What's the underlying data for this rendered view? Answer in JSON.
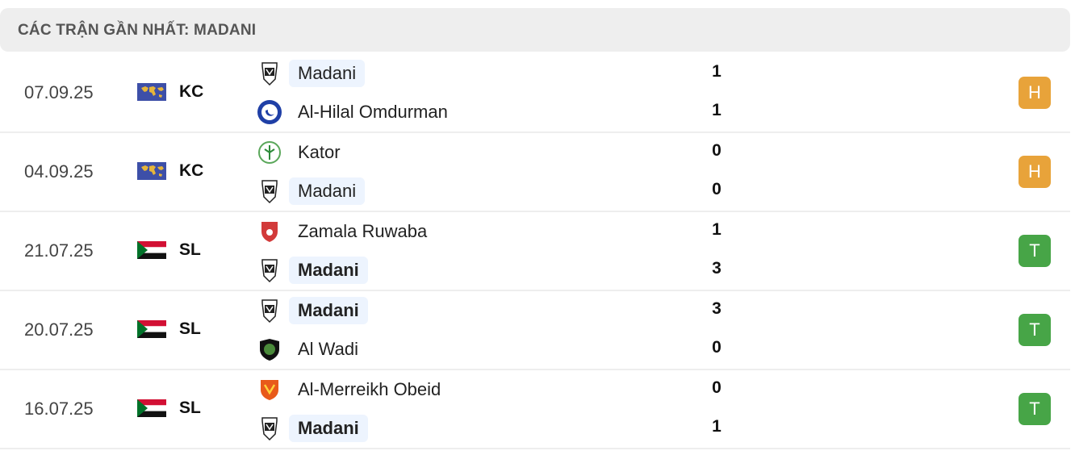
{
  "header": {
    "title": "CÁC TRẬN GẦN NHẤT: MADANI"
  },
  "colors": {
    "draw": "#e8a33a",
    "win": "#47a547",
    "highlight": "#edf4fe"
  },
  "matches": [
    {
      "date": "07.09.25",
      "flag": "world-flag",
      "competition": "KC",
      "home": {
        "name": "Madani",
        "score": "1",
        "highlight": true,
        "bold": false,
        "logo": "madani-crest"
      },
      "away": {
        "name": "Al-Hilal Omdurman",
        "score": "1",
        "highlight": false,
        "bold": false,
        "logo": "al-hilal-crest"
      },
      "result": "H",
      "result_type": "draw"
    },
    {
      "date": "04.09.25",
      "flag": "world-flag",
      "competition": "KC",
      "home": {
        "name": "Kator",
        "score": "0",
        "highlight": false,
        "bold": false,
        "logo": "kator-crest"
      },
      "away": {
        "name": "Madani",
        "score": "0",
        "highlight": true,
        "bold": false,
        "logo": "madani-crest"
      },
      "result": "H",
      "result_type": "draw"
    },
    {
      "date": "21.07.25",
      "flag": "sudan-flag",
      "competition": "SL",
      "home": {
        "name": "Zamala Ruwaba",
        "score": "1",
        "highlight": false,
        "bold": false,
        "logo": "zamala-crest"
      },
      "away": {
        "name": "Madani",
        "score": "3",
        "highlight": true,
        "bold": true,
        "logo": "madani-crest"
      },
      "result": "T",
      "result_type": "win"
    },
    {
      "date": "20.07.25",
      "flag": "sudan-flag",
      "competition": "SL",
      "home": {
        "name": "Madani",
        "score": "3",
        "highlight": true,
        "bold": true,
        "logo": "madani-crest"
      },
      "away": {
        "name": "Al Wadi",
        "score": "0",
        "highlight": false,
        "bold": false,
        "logo": "al-wadi-crest"
      },
      "result": "T",
      "result_type": "win"
    },
    {
      "date": "16.07.25",
      "flag": "sudan-flag",
      "competition": "SL",
      "home": {
        "name": "Al-Merreikh Obeid",
        "score": "0",
        "highlight": false,
        "bold": false,
        "logo": "merreikh-crest"
      },
      "away": {
        "name": "Madani",
        "score": "1",
        "highlight": true,
        "bold": true,
        "logo": "madani-crest"
      },
      "result": "T",
      "result_type": "win"
    }
  ]
}
